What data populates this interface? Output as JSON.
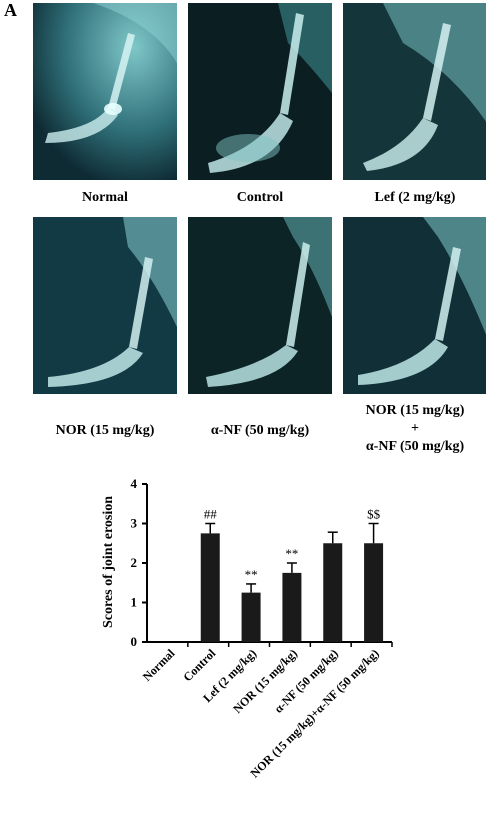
{
  "panel_label": "A",
  "photos": [
    {
      "caption": "Normal"
    },
    {
      "caption": "Control"
    },
    {
      "caption": "Lef (2 mg/kg)"
    },
    {
      "caption": "NOR (15 mg/kg)"
    },
    {
      "caption": "α-NF (50 mg/kg)"
    },
    {
      "caption_lines": [
        "NOR (15 mg/kg)",
        "+",
        "α-NF (50 mg/kg)"
      ]
    }
  ],
  "chart_data": {
    "type": "bar",
    "title": "",
    "ylabel": "Scores of joint erosion",
    "xlabel": "",
    "ylim": [
      0,
      4
    ],
    "yticks": [
      "0",
      "1",
      "2",
      "3",
      "4"
    ],
    "categories": [
      "Normal",
      "Control",
      "Lef (2 mg/kg)",
      "NOR (15 mg/kg)",
      "α-NF (50 mg/kg)",
      "NOR (15 mg/kg)+α-NF (50 mg/kg)"
    ],
    "values": [
      0,
      2.75,
      1.25,
      1.75,
      2.5,
      2.5
    ],
    "errors": [
      0,
      0.25,
      0.22,
      0.25,
      0.28,
      0.5
    ],
    "annotations": [
      "",
      "##",
      "**",
      "**",
      "",
      "$$"
    ],
    "bar_color": "#1a1a1a"
  }
}
